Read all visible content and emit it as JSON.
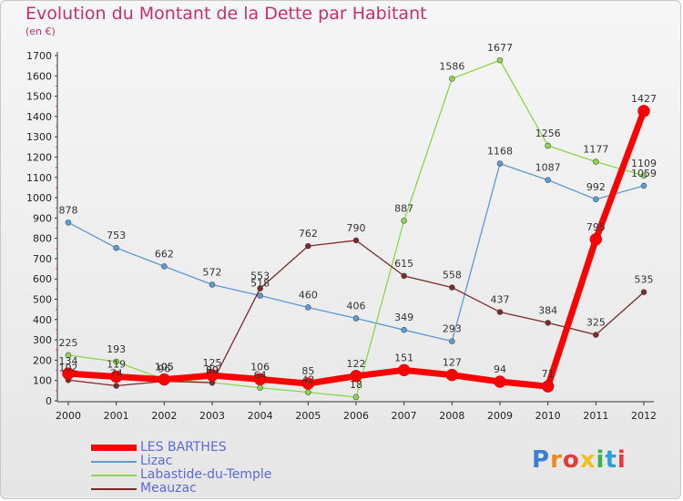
{
  "title": "Evolution du Montant de la Dette par Habitant",
  "unit": "(en €)",
  "brand": "Proxiti",
  "brand_colors": [
    "#3a7fd6",
    "#f08a1c",
    "#e23b3b",
    "#f0c21c",
    "#3ab44a",
    "#2aa0d8",
    "#e23b3b"
  ],
  "chart_data": {
    "type": "line",
    "x": [
      "2000",
      "2001",
      "2002",
      "2003",
      "2004",
      "2005",
      "2006",
      "2007",
      "2008",
      "2009",
      "2010",
      "2011",
      "2012"
    ],
    "ylim": [
      0,
      1700
    ],
    "yticks": [
      0,
      100,
      200,
      300,
      400,
      500,
      600,
      700,
      800,
      900,
      1000,
      1100,
      1200,
      1300,
      1400,
      1500,
      1600,
      1700
    ],
    "grid": false,
    "legend_position": "bottom-left",
    "series": [
      {
        "name": "LES BARTHES",
        "color": "#ff0000",
        "values": [
          134,
          119,
          105,
          125,
          106,
          85,
          122,
          151,
          127,
          94,
          71,
          795,
          1427
        ]
      },
      {
        "name": "Lizac",
        "color": "#5b9bd5",
        "values": [
          878,
          753,
          662,
          572,
          518,
          460,
          406,
          349,
          293,
          1168,
          1087,
          992,
          1059
        ]
      },
      {
        "name": "Labastide-du-Temple",
        "color": "#8bd64a",
        "values": [
          225,
          193,
          105,
          90,
          64,
          42,
          18,
          887,
          1586,
          1677,
          1256,
          1177,
          1109
        ]
      },
      {
        "name": "Meauzac",
        "color": "#7b2a2a",
        "values": [
          102,
          74,
          96,
          89,
          553,
          762,
          790,
          615,
          558,
          437,
          384,
          325,
          535
        ]
      }
    ]
  }
}
